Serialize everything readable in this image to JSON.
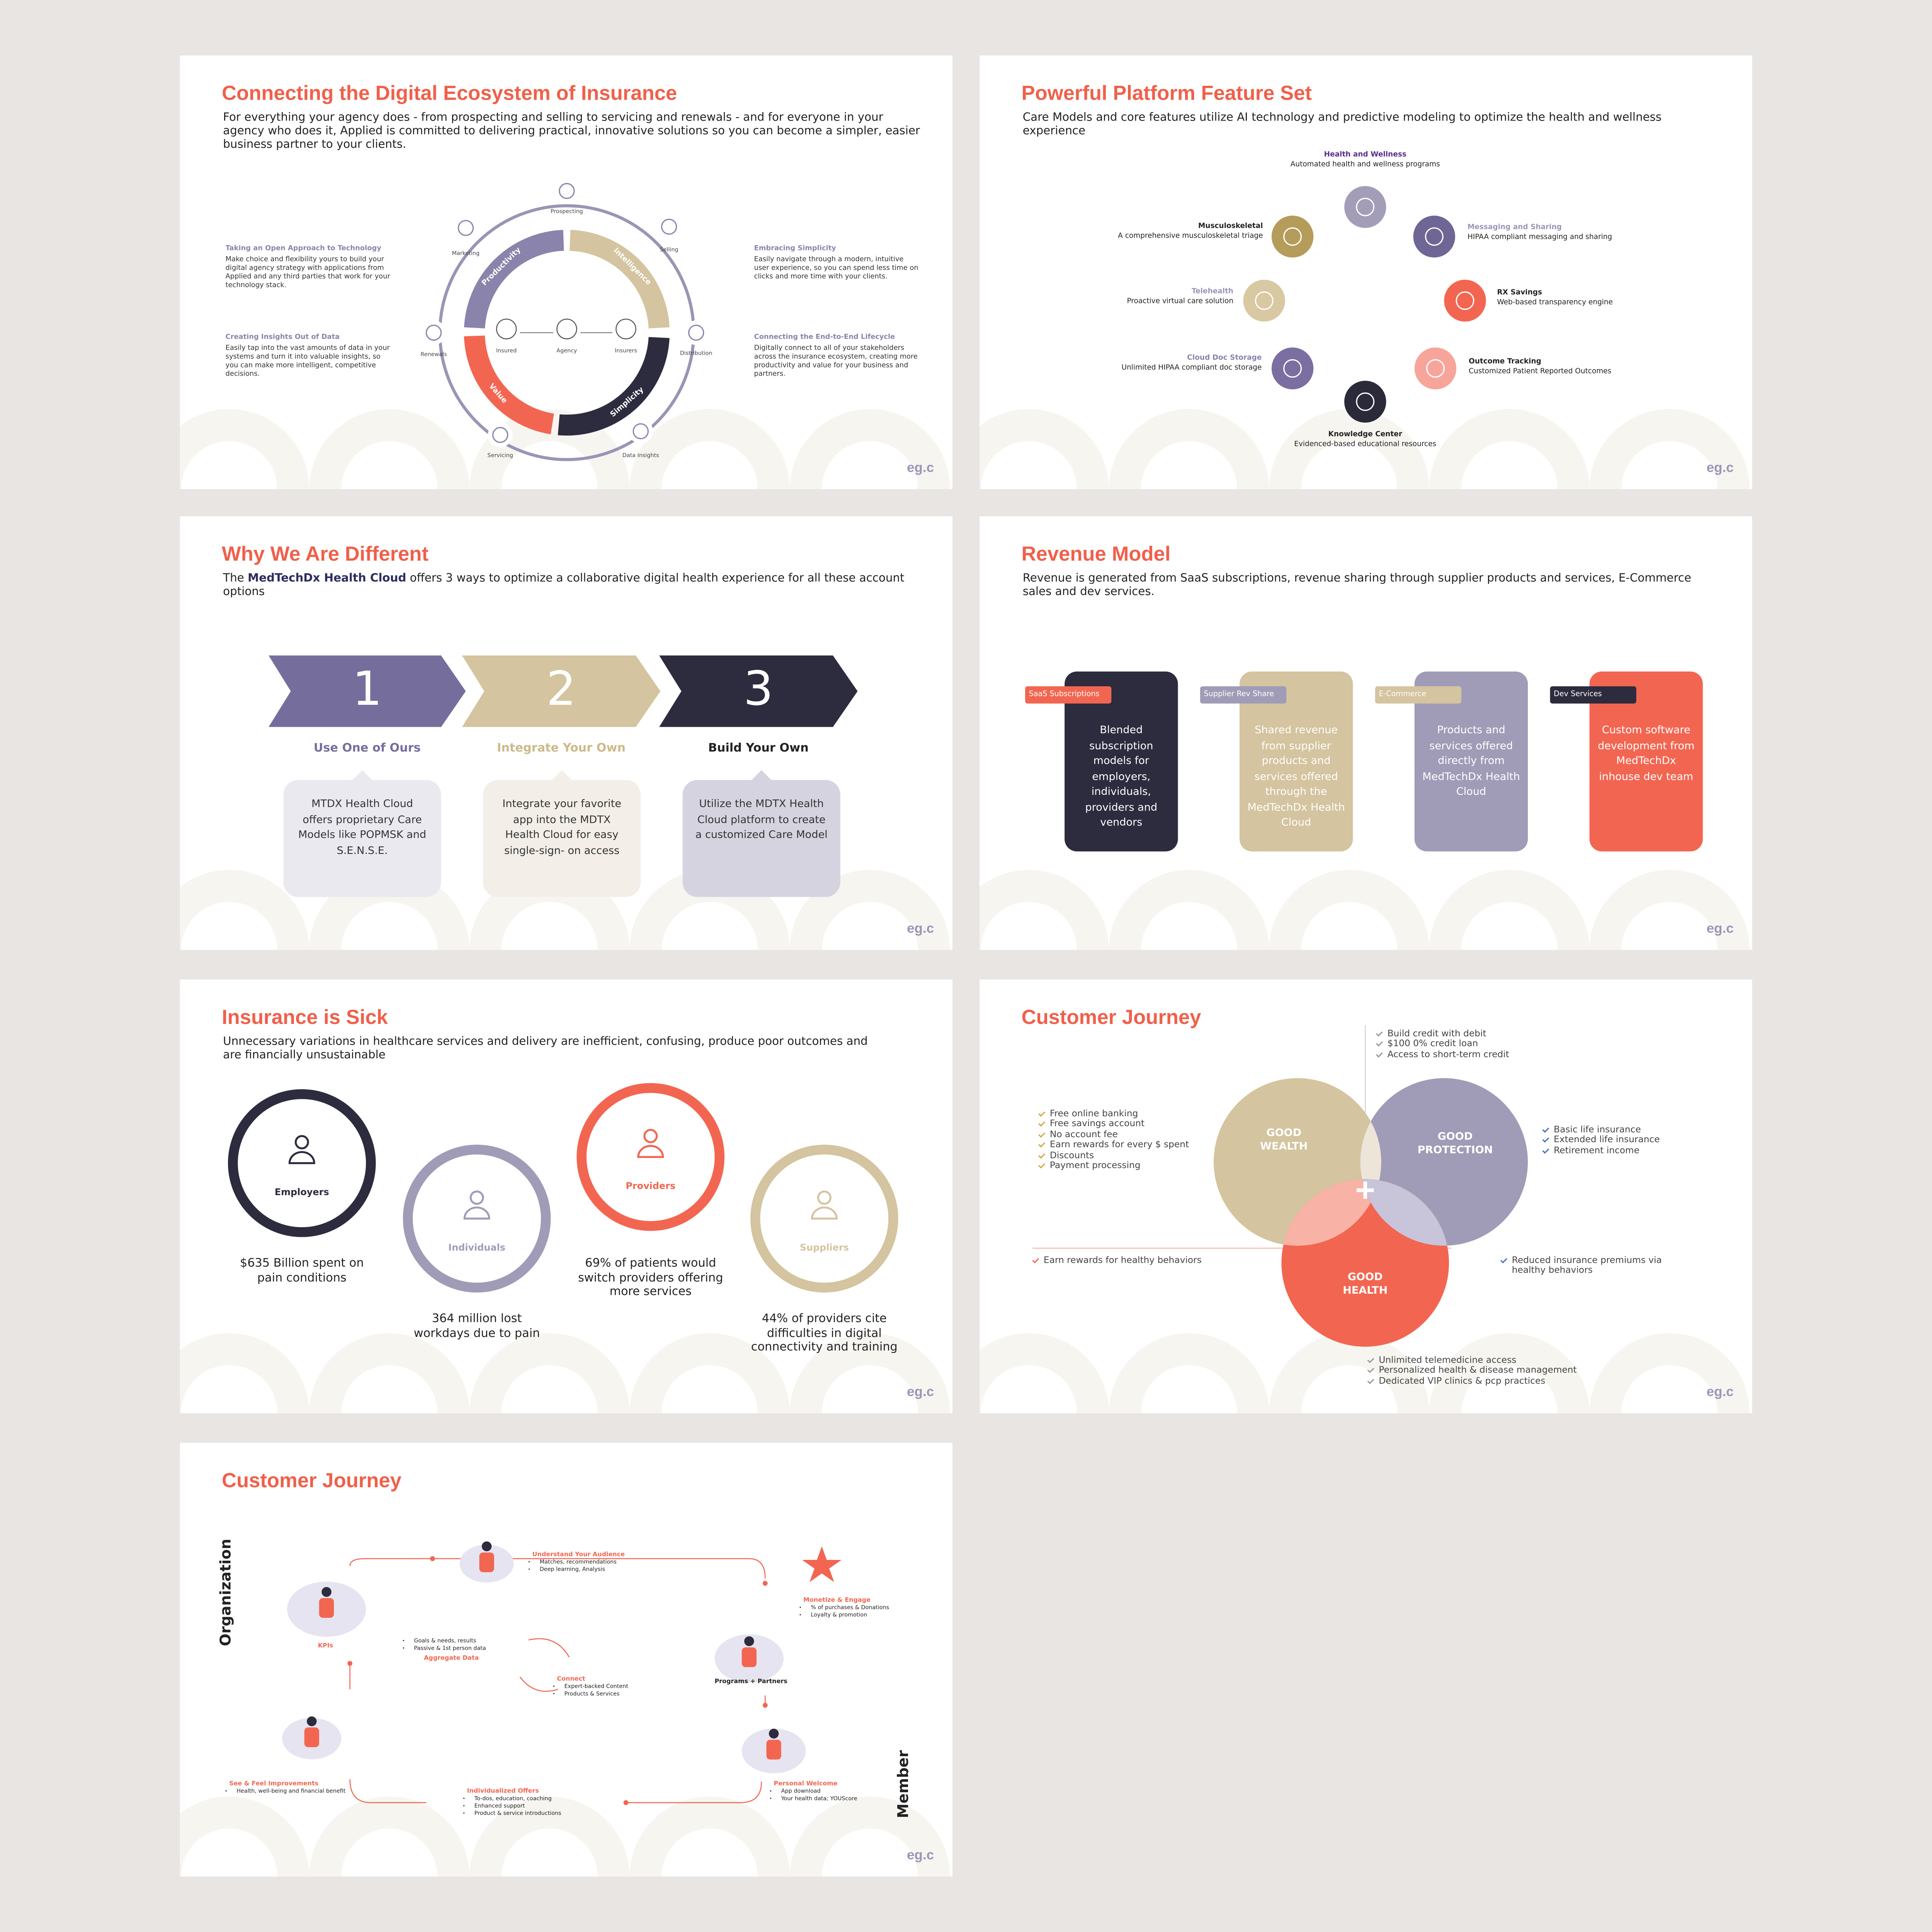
{
  "logo": "eg.c",
  "slides": [
    {
      "title": "Connecting the Digital Ecosystem of Insurance",
      "intro": "For everything your agency does - from prospecting and selling to servicing and renewals - and for everyone in your agency who does it, Applied is committed to delivering practical, innovative solutions so you can become a simpler, easier business partner to your clients.",
      "left": [
        {
          "title": "Taking an Open Approach to Technology",
          "text": "Make choice and flexibility yours to build your digital agency strategy with applications from Applied and any third parties that work for your technology stack."
        },
        {
          "title": "Creating Insights Out of Data",
          "text": "Easily tap into the vast amounts of data in your systems and turn it into valuable insights, so you can make more intelligent, competitive decisions."
        }
      ],
      "right": [
        {
          "title": "Embracing Simplicity",
          "text": "Easily navigate through a modern, intuitive user experience, so you can spend less time on clicks and more time with your clients."
        },
        {
          "title": "Connecting the End-to-End Lifecycle",
          "text": "Digitally connect to all of your stakeholders across the insurance ecosystem, creating more productivity and value for your business and partners."
        }
      ],
      "stages": [
        "Prospecting",
        "Selling",
        "Distribution",
        "Data Insights",
        "Servicing",
        "Renewals",
        "Marketing"
      ],
      "center": [
        "Insured",
        "Agency",
        "Insurers"
      ],
      "arcs": [
        "Productivity",
        "Intelligence",
        "Simplicity",
        "Value"
      ]
    },
    {
      "title": "Powerful Platform Feature Set",
      "intro": "Care Models and core features utilize AI technology and predictive modeling to optimize the health and wellness experience",
      "features": [
        {
          "name": "Health and Wellness",
          "text": "Automated health and wellness programs"
        },
        {
          "name": "Musculoskeletal",
          "text": "A comprehensive musculoskeletal triage"
        },
        {
          "name": "Messaging and Sharing",
          "text": "HIPAA compliant messaging and sharing"
        },
        {
          "name": "Telehealth",
          "text": "Proactive virtual care solution"
        },
        {
          "name": "RX Savings",
          "text": "Web-based transparency engine"
        },
        {
          "name": "Cloud Doc Storage",
          "text": "Unlimited HIPAA compliant doc storage"
        },
        {
          "name": "Outcome Tracking",
          "text": "Customized Patient Reported Outcomes"
        },
        {
          "name": "Knowledge Center",
          "text": "Evidenced-based educational resources"
        }
      ]
    },
    {
      "title": "Why We Are Different",
      "intro": {
        "lead": "The",
        "highlight": "MedTechDx Health Cloud",
        "rest": "offers 3 ways to optimize a collaborative digital health experience for all these account options"
      },
      "options": [
        {
          "number": "1",
          "name": "Use One of Ours",
          "text": "MTDX Health Cloud offers proprietary Care Models like POPMSK and S.E.N.S.E."
        },
        {
          "number": "2",
          "name": "Integrate Your Own",
          "text": "Integrate your favorite app into the MDTX Health Cloud for easy single-sign- on access"
        },
        {
          "number": "3",
          "name": "Build Your Own",
          "text": "Utilize the MDTX Health Cloud platform to create a customized Care Model"
        }
      ]
    },
    {
      "title": "Revenue Model",
      "intro": "Revenue is generated from SaaS subscriptions, revenue sharing through supplier products and services, E-Commerce sales and dev services.",
      "models": [
        {
          "tag": "SaaS Subscriptions",
          "text": "Blended subscription models for employers, individuals, providers and vendors"
        },
        {
          "tag": "Supplier Rev Share",
          "text": "Shared revenue from supplier products and services offered through the MedTechDx Health Cloud"
        },
        {
          "tag": "E-Commerce",
          "text": "Products and services offered directly from MedTechDx Health Cloud"
        },
        {
          "tag": "Dev Services",
          "text": "Custom software development from MedTechDx inhouse dev team"
        }
      ]
    },
    {
      "title": "Insurance is Sick",
      "intro": "Unnecessary variations in healthcare services and delivery are inefficient, confusing, produce poor outcomes and are financially unsustainable",
      "groups": [
        {
          "label": "Employers",
          "stat": "$635 Billion spent on pain conditions"
        },
        {
          "label": "Individuals",
          "stat": "364 million lost workdays due to pain"
        },
        {
          "label": "Providers",
          "stat": "69% of patients would switch providers offering more services"
        },
        {
          "label": "Suppliers",
          "stat": "44% of providers cite difficulties in digital connectivity and training"
        }
      ]
    },
    {
      "title": "Customer Journey",
      "circles": [
        "GOOD WEALTH",
        "GOOD PROTECTION",
        "GOOD HEALTH"
      ],
      "lists": [
        [
          "Build credit with debit",
          "$100 0% credit loan",
          "Access to short-term credit"
        ],
        [
          "Free online banking",
          "Free savings account",
          "No account fee",
          "Earn rewards for every $ spent",
          "Discounts",
          "Payment processing"
        ],
        [
          "Basic life insurance",
          "Extended life insurance",
          "Retirement income"
        ],
        [
          "Earn rewards for healthy behaviors"
        ],
        [
          "Reduced insurance premiums via healthy behaviors"
        ],
        [
          "Unlimited telemedicine access",
          "Personalized health & disease management",
          "Dedicated VIP clinics & pcp practices"
        ]
      ]
    },
    {
      "title": "Customer Journey",
      "organization": "Organization",
      "member": "Member",
      "kpis": "KPIs",
      "programs": "Programs + Partners",
      "steps": [
        {
          "title": "Understand Your Audience",
          "bullets": [
            "Matches, recommendations",
            "Deep learning, Analysis"
          ]
        },
        {
          "title": "Monetize & Engage",
          "bullets": [
            "% of purchases & Donations",
            "Loyalty & promotion"
          ]
        },
        {
          "title": "Personal Welcome",
          "bullets": [
            "App download",
            "Your health data; YOUScore"
          ]
        },
        {
          "title": "Individualized Offers",
          "bullets": [
            "To-dos, education, coaching",
            "Enhanced support",
            "Product & service introductions"
          ]
        },
        {
          "title": "See & Feel Improvements",
          "bullets": [
            "Health, well-being and financial benefit"
          ]
        },
        {
          "title": "Aggregate Data",
          "bullets": [
            "Goals & needs, results",
            "Passive & 1st person data"
          ]
        },
        {
          "title": "Connect",
          "bullets": [
            "Expert-backed Content",
            "Products & Services"
          ]
        }
      ]
    }
  ]
}
